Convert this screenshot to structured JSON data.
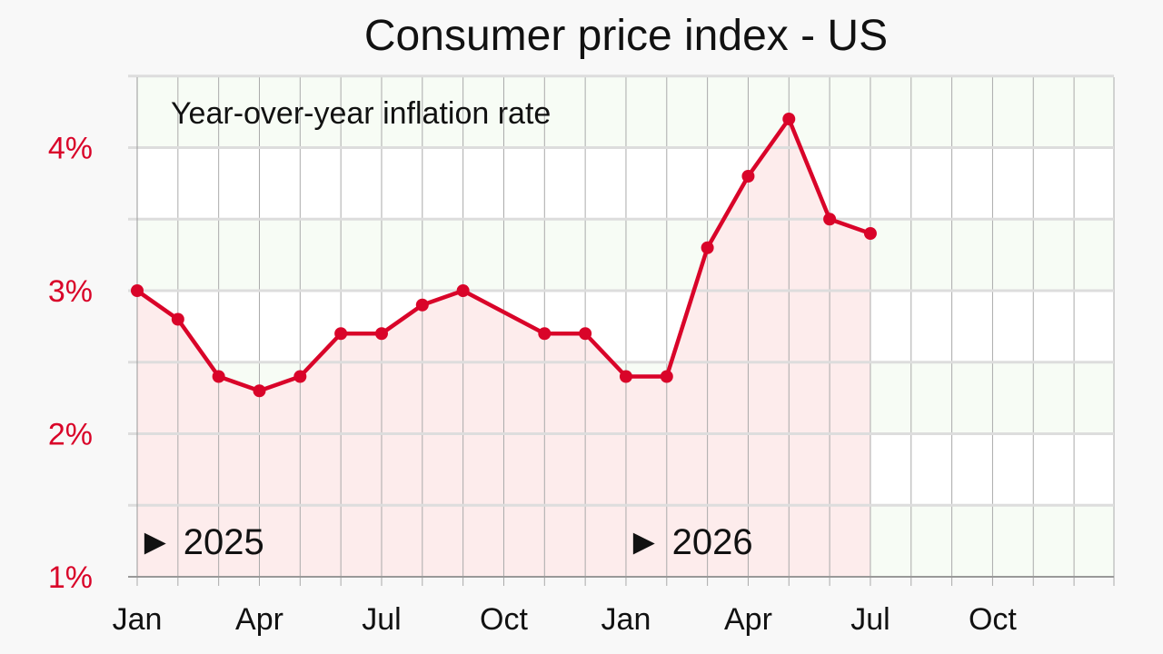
{
  "colors": {
    "background": "#f8f8f8",
    "series": "#d90429",
    "series_fill": "#fdecec",
    "band_tint": "#f7fcf5",
    "grid_major": "#dddddd",
    "grid_minor": "#aaaaaa",
    "ytick_text": "#d90429"
  },
  "chart_data": {
    "type": "line",
    "title": "Consumer price index - US",
    "subtitle": "Year-over-year inflation rate",
    "xlabel": "",
    "ylabel": "",
    "ylim": [
      1,
      4.5
    ],
    "yticks": [
      1,
      2,
      3,
      4
    ],
    "ytick_labels": [
      "1%",
      "2%",
      "3%",
      "4%"
    ],
    "x_months": [
      "2025-01",
      "2025-02",
      "2025-03",
      "2025-04",
      "2025-05",
      "2025-06",
      "2025-07",
      "2025-08",
      "2025-09",
      "2025-10",
      "2025-11",
      "2025-12",
      "2026-01",
      "2026-02",
      "2026-03",
      "2026-04",
      "2026-05",
      "2026-06",
      "2026-07",
      "2026-08",
      "2026-09",
      "2026-10",
      "2026-11",
      "2026-12"
    ],
    "xtick_labels": [
      "Jan",
      "Apr",
      "Jul",
      "Oct",
      "Jan",
      "Apr",
      "Jul",
      "Oct"
    ],
    "xtick_months": [
      "2025-01",
      "2025-04",
      "2025-07",
      "2025-10",
      "2026-01",
      "2026-04",
      "2026-07",
      "2026-10"
    ],
    "year_markers": [
      {
        "label": "► 2025",
        "month": "2025-01"
      },
      {
        "label": "► 2026",
        "month": "2026-01"
      }
    ],
    "grid": true,
    "series": [
      {
        "points": [
          {
            "x": "2025-01",
            "y": 3.0
          },
          {
            "x": "2025-02",
            "y": 2.8
          },
          {
            "x": "2025-03",
            "y": 2.4
          },
          {
            "x": "2025-04",
            "y": 2.3
          },
          {
            "x": "2025-05",
            "y": 2.4
          },
          {
            "x": "2025-06",
            "y": 2.7
          },
          {
            "x": "2025-07",
            "y": 2.7
          },
          {
            "x": "2025-08",
            "y": 2.9
          },
          {
            "x": "2025-09",
            "y": 3.0
          },
          {
            "x": "2025-11",
            "y": 2.7
          },
          {
            "x": "2025-12",
            "y": 2.7
          },
          {
            "x": "2026-01",
            "y": 2.4
          },
          {
            "x": "2026-02",
            "y": 2.4
          },
          {
            "x": "2026-03",
            "y": 3.3
          },
          {
            "x": "2026-04",
            "y": 3.8
          },
          {
            "x": "2026-05",
            "y": 4.2
          },
          {
            "x": "2026-06",
            "y": 3.5
          },
          {
            "x": "2026-07",
            "y": 3.4
          }
        ]
      }
    ]
  }
}
